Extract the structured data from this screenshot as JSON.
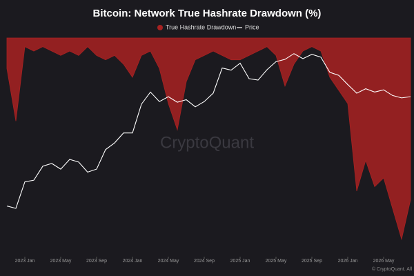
{
  "chart_data": {
    "type": "area-line",
    "title": "Bitcoin: Network True Hashrate Drawdown (%)",
    "watermark": "CryptoQuant",
    "footer": "© CryptoQuant. All",
    "x": [
      "2022-11",
      "2022-12",
      "2023-01",
      "2023-02",
      "2023-03",
      "2023-04",
      "2023-05",
      "2023-06",
      "2023-07",
      "2023-08",
      "2023-09",
      "2023-10",
      "2023-11",
      "2023-12",
      "2024-01",
      "2024-02",
      "2024-03",
      "2024-04",
      "2024-05",
      "2024-06",
      "2024-07",
      "2024-08",
      "2024-09",
      "2024-10",
      "2024-11",
      "2024-12",
      "2025-01",
      "2025-02",
      "2025-03",
      "2025-04",
      "2025-05",
      "2025-06",
      "2025-07",
      "2025-08",
      "2025-09",
      "2025-10",
      "2025-11",
      "2025-12",
      "2026-01",
      "2026-02",
      "2026-03",
      "2026-04",
      "2026-05",
      "2026-06",
      "2026-07",
      "2026-08"
    ],
    "xticks": [
      {
        "value": "2023-01",
        "label": "2023 Jan"
      },
      {
        "value": "2023-05",
        "label": "2023 May"
      },
      {
        "value": "2023-09",
        "label": "2023 Sep"
      },
      {
        "value": "2024-01",
        "label": "2024 Jan"
      },
      {
        "value": "2024-05",
        "label": "2024 May"
      },
      {
        "value": "2024-09",
        "label": "2024 Sep"
      },
      {
        "value": "2025-01",
        "label": "2025 Jan"
      },
      {
        "value": "2025-05",
        "label": "2025 May"
      },
      {
        "value": "2025-09",
        "label": "2025 Sep"
      },
      {
        "value": "2026-01",
        "label": "2026 Jan"
      },
      {
        "value": "2026-05",
        "label": "2026 May"
      }
    ],
    "ylim": [
      -50,
      0
    ],
    "y2lim": [
      9000,
      140000
    ],
    "y2log": true,
    "series": [
      {
        "name": "True Hashrate Drawdown",
        "color": "#a82222",
        "values": [
          -7,
          -19,
          -2,
          -3,
          -2,
          -3,
          -4,
          -3,
          -4,
          -2,
          -4,
          -5,
          -4,
          -6,
          -9,
          -4,
          -3,
          -7,
          -15,
          -21,
          -10,
          -5,
          -4,
          -3,
          -4,
          -5,
          -5,
          -4,
          -3,
          -2,
          -4,
          -11,
          -6,
          -3,
          -2,
          -3,
          -9,
          -12,
          -15,
          -35,
          -28,
          -34,
          -32,
          -39,
          -46,
          -37
        ]
      },
      {
        "name": "Price",
        "color": "#ffffff",
        "axis": "y2",
        "values": [
          17000,
          16500,
          23000,
          23500,
          28000,
          29000,
          27000,
          30500,
          29500,
          26000,
          27000,
          34500,
          37500,
          42500,
          42500,
          61000,
          71000,
          63000,
          67000,
          62500,
          64500,
          59000,
          63000,
          70000,
          96000,
          93500,
          102000,
          84000,
          82500,
          94000,
          104000,
          107000,
          115000,
          108000,
          114000,
          110000,
          91000,
          87500,
          78000,
          70000,
          74000,
          71000,
          73000,
          68000,
          66000,
          67000
        ]
      }
    ]
  }
}
